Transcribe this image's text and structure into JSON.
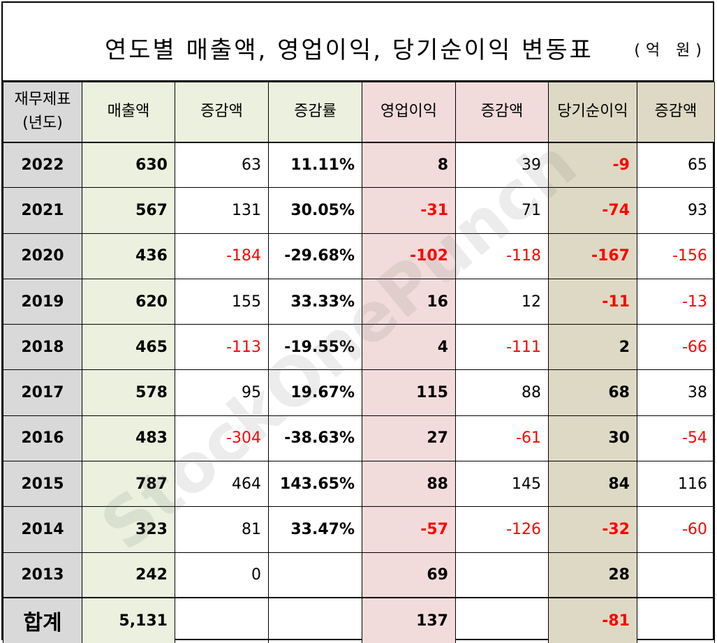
{
  "title": "연도별 매출액, 영업이익, 당기순이익 변동표",
  "unit": "(억 원)",
  "watermark": "StockOnePunch",
  "header": {
    "year_line1": "재무제표",
    "year_line2": "(년도)",
    "revenue": "매출액",
    "revenue_change": "증감액",
    "revenue_rate": "증감률",
    "operating_profit": "영업이익",
    "op_change": "증감액",
    "net_income": "당기순이익",
    "ni_change": "증감액"
  },
  "colors": {
    "revenue_bg": "#ebf1de",
    "operating_bg": "#f2dcdb",
    "net_bg": "#ddd9c4",
    "year_bg": "#d9d9d9",
    "negative": "#ff0000"
  },
  "rows": [
    {
      "year": "2022",
      "revenue": "630",
      "revenue_change": "63",
      "revenue_rate": "11.11%",
      "op": "8",
      "op_change": "39",
      "ni": "-9",
      "ni_change": "65"
    },
    {
      "year": "2021",
      "revenue": "567",
      "revenue_change": "131",
      "revenue_rate": "30.05%",
      "op": "-31",
      "op_change": "71",
      "ni": "-74",
      "ni_change": "93"
    },
    {
      "year": "2020",
      "revenue": "436",
      "revenue_change": "-184",
      "revenue_rate": "-29.68%",
      "op": "-102",
      "op_change": "-118",
      "ni": "-167",
      "ni_change": "-156"
    },
    {
      "year": "2019",
      "revenue": "620",
      "revenue_change": "155",
      "revenue_rate": "33.33%",
      "op": "16",
      "op_change": "12",
      "ni": "-11",
      "ni_change": "-13"
    },
    {
      "year": "2018",
      "revenue": "465",
      "revenue_change": "-113",
      "revenue_rate": "-19.55%",
      "op": "4",
      "op_change": "-111",
      "ni": "2",
      "ni_change": "-66"
    },
    {
      "year": "2017",
      "revenue": "578",
      "revenue_change": "95",
      "revenue_rate": "19.67%",
      "op": "115",
      "op_change": "88",
      "ni": "68",
      "ni_change": "38"
    },
    {
      "year": "2016",
      "revenue": "483",
      "revenue_change": "-304",
      "revenue_rate": "-38.63%",
      "op": "27",
      "op_change": "-61",
      "ni": "30",
      "ni_change": "-54"
    },
    {
      "year": "2015",
      "revenue": "787",
      "revenue_change": "464",
      "revenue_rate": "143.65%",
      "op": "88",
      "op_change": "145",
      "ni": "84",
      "ni_change": "116"
    },
    {
      "year": "2014",
      "revenue": "323",
      "revenue_change": "81",
      "revenue_rate": "33.47%",
      "op": "-57",
      "op_change": "-126",
      "ni": "-32",
      "ni_change": "-60"
    },
    {
      "year": "2013",
      "revenue": "242",
      "revenue_change": "0",
      "revenue_rate": "",
      "op": "69",
      "op_change": "",
      "ni": "28",
      "ni_change": ""
    }
  ],
  "total": {
    "label": "합계",
    "revenue": "5,131",
    "revenue_change": "",
    "revenue_rate": "",
    "op": "137",
    "op_change": "",
    "ni": "-81",
    "ni_change": ""
  }
}
